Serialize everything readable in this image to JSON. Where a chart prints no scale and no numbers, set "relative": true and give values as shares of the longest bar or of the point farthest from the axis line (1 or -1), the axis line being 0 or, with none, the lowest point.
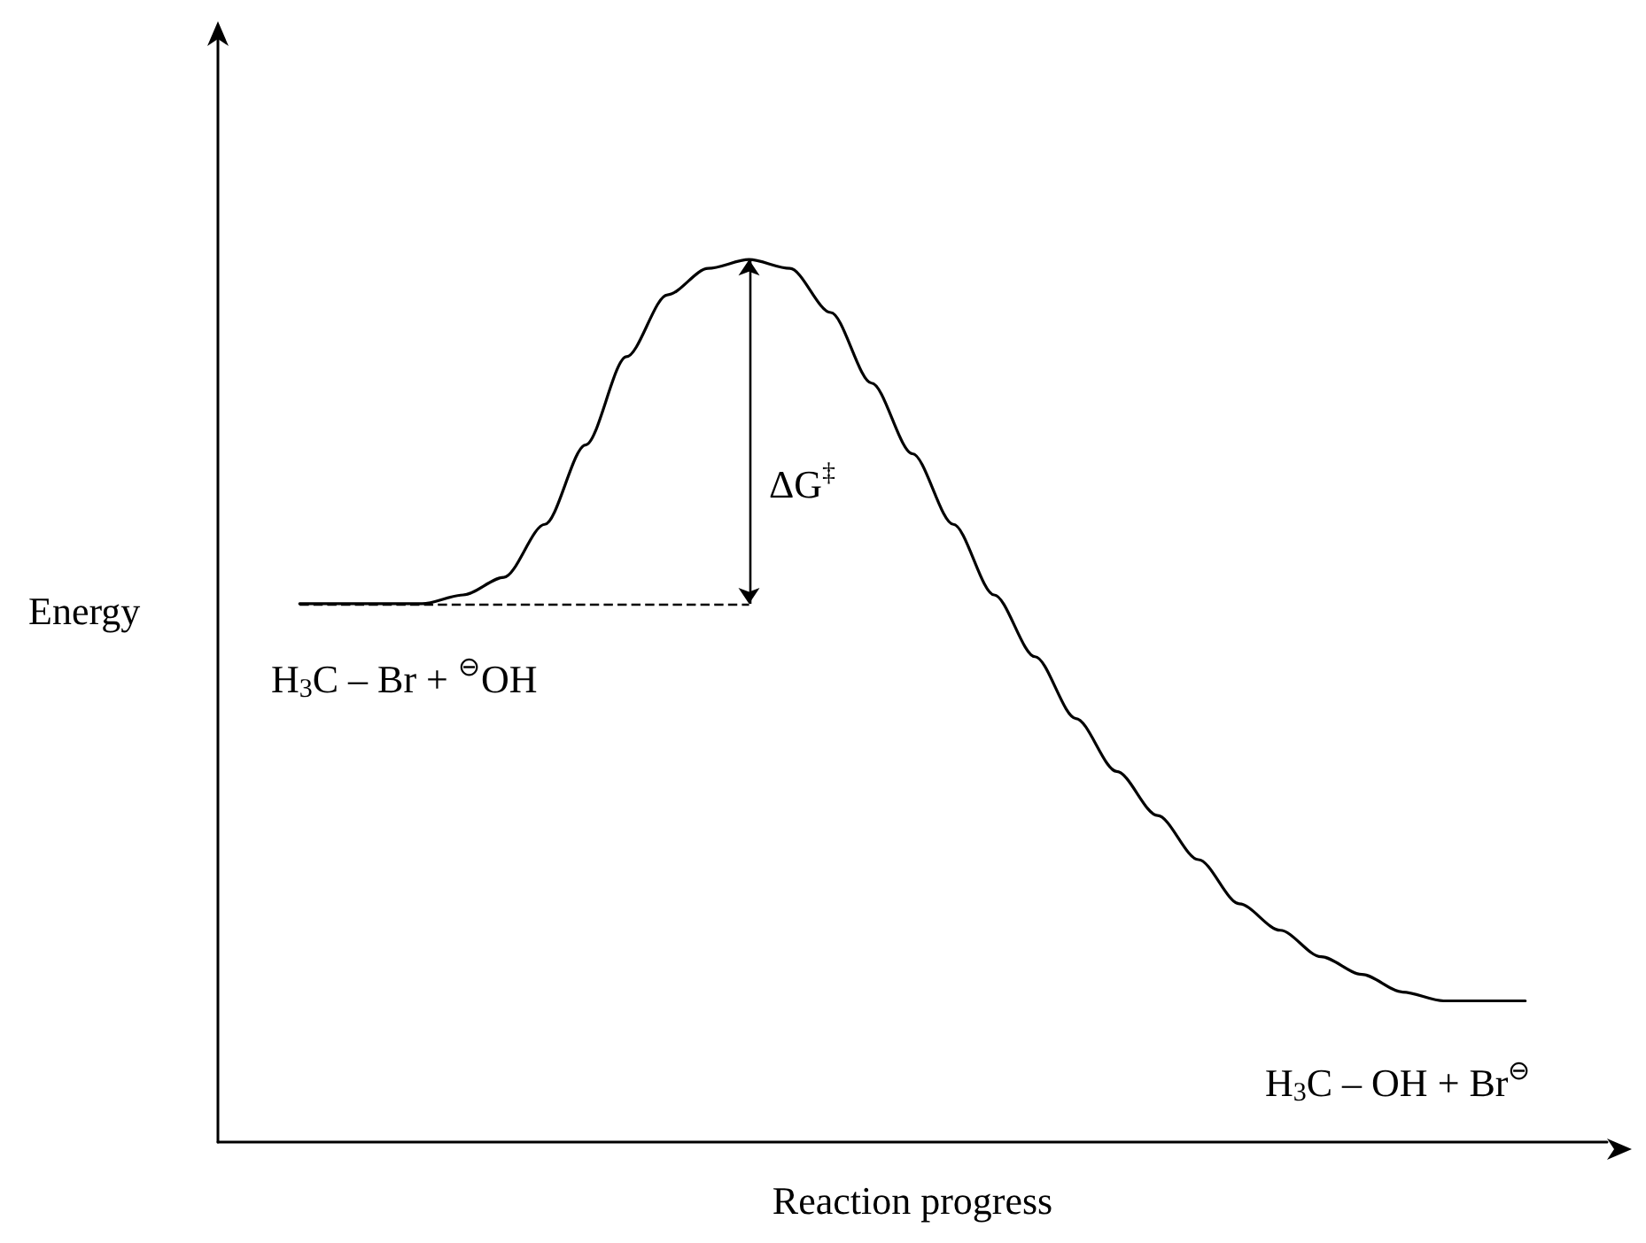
{
  "chart_data": {
    "type": "line",
    "relative": true,
    "marker": "none",
    "line_style": "solid",
    "color": "#000000",
    "xlabel": "Reaction progress",
    "ylabel": "Energy",
    "categories": [
      null,
      null,
      null,
      null,
      null,
      null,
      null,
      null,
      null,
      null,
      null,
      null,
      null,
      null,
      null,
      null,
      null,
      null,
      null,
      null,
      null,
      null,
      null,
      null,
      null,
      null,
      null,
      null,
      null,
      null,
      null,
      null,
      null,
      null,
      null
    ],
    "values": [
      null,
      null,
      0.61,
      0.61,
      0.61,
      0.61,
      0.62,
      0.64,
      0.7,
      0.79,
      0.89,
      0.96,
      0.99,
      1,
      0.99,
      0.94,
      0.86,
      0.78,
      0.7,
      0.62,
      0.55,
      0.48,
      0.42,
      0.37,
      0.32,
      0.27,
      0.24,
      0.21,
      0.19,
      0.17,
      0.16,
      0.16,
      0.16,
      null,
      null
    ],
    "ref_lines": [
      {
        "axis": "y",
        "value": 0.61,
        "line_style": "dashed"
      }
    ],
    "annotations": [
      "H$_{3}$C – Br + $^{⊖}$OH",
      "ΔG$^{‡}$",
      "H$_{3}$C – OH + Br$^{⊖}$"
    ]
  }
}
